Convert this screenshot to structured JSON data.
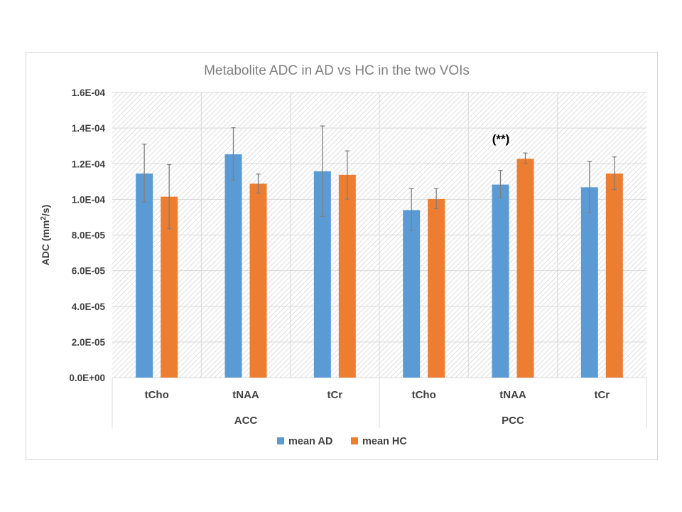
{
  "chart_data": {
    "type": "bar",
    "title": "Metabolite ADC in AD vs HC in the two VOIs",
    "ylabel_text": "ADC (mm",
    "ylabel_sup": "2",
    "ylabel_tail": "/s)",
    "ylim": [
      0,
      0.00016
    ],
    "yticks": [
      0,
      2e-05,
      4e-05,
      6e-05,
      8e-05,
      0.0001,
      0.00012,
      0.00014,
      0.00016
    ],
    "ytick_labels": [
      "0.0E+00",
      "2.0E-05",
      "4.0E-05",
      "6.0E-05",
      "8.0E-05",
      "1.0E-04",
      "1.2E-04",
      "1.4E-04",
      "1.6E-04"
    ],
    "groups": [
      "ACC",
      "PCC"
    ],
    "categories": [
      "tCho",
      "tNAA",
      "tCr",
      "tCho",
      "tNAA",
      "tCr"
    ],
    "series": [
      {
        "name": "mean AD",
        "color": "#5b9bd5",
        "values": [
          0.0001145,
          0.0001253,
          0.0001158,
          9.4e-05,
          0.0001083,
          0.0001068
        ],
        "error_low": [
          9.85e-05,
          0.0001108,
          9.05e-05,
          8.25e-05,
          0.000101,
          9.25e-05
        ],
        "error_high": [
          0.000131,
          0.0001402,
          0.0001412,
          0.000106,
          0.0001162,
          0.0001213
        ]
      },
      {
        "name": "mean HC",
        "color": "#ed7d31",
        "values": [
          0.0001015,
          0.0001088,
          0.0001138,
          0.0001002,
          0.0001228,
          0.0001145
        ],
        "error_low": [
          8.35e-05,
          0.0001035,
          0.0001002,
          9.48e-05,
          0.0001202,
          0.0001055
        ],
        "error_high": [
          0.0001195,
          0.0001142,
          0.0001272,
          0.000106,
          0.000126,
          0.0001238
        ]
      }
    ],
    "annotations": [
      {
        "text": "(**)",
        "category_index": 4
      }
    ],
    "legend_position": "bottom",
    "grid": true
  }
}
